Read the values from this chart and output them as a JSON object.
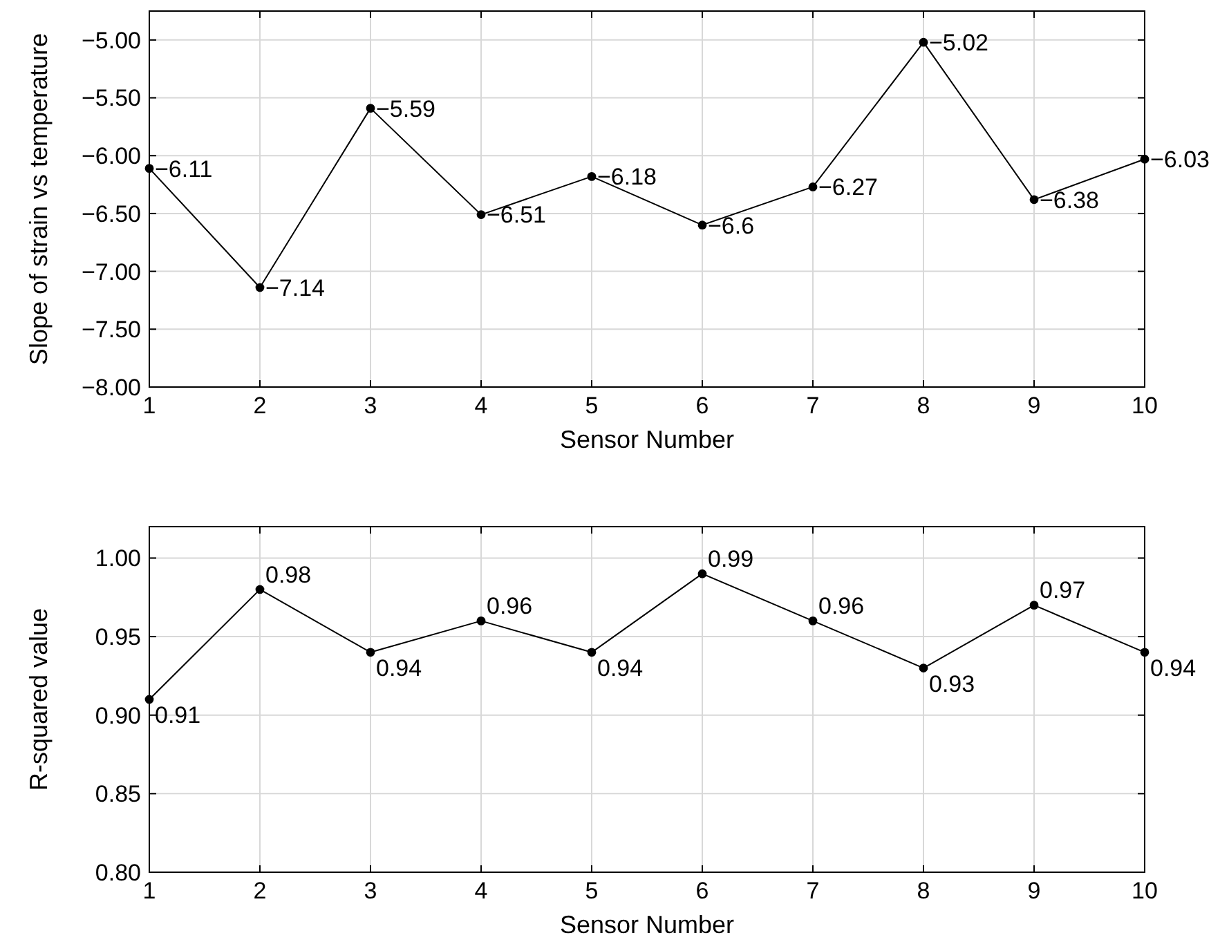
{
  "chart_data": [
    {
      "type": "line",
      "xlabel": "Sensor Number",
      "ylabel": "Slope of strain vs temperature",
      "x": [
        1,
        2,
        3,
        4,
        5,
        6,
        7,
        8,
        9,
        10
      ],
      "series": [
        {
          "color": "#000000",
          "values": [
            -6.11,
            -7.14,
            -5.59,
            -6.51,
            -6.18,
            -6.6,
            -6.27,
            -5.02,
            -6.38,
            -6.03
          ]
        }
      ],
      "xlim": [
        1,
        10
      ],
      "xticks": [
        1,
        2,
        3,
        4,
        5,
        6,
        7,
        8,
        9,
        10
      ],
      "ylim": [
        -8,
        -4.75
      ],
      "yticks": [
        {
          "value": -8,
          "label": "−8.00"
        },
        {
          "value": -7.5,
          "label": "−7.50"
        },
        {
          "value": -7,
          "label": "−7.00"
        },
        {
          "value": -6.5,
          "label": "−6.50"
        },
        {
          "value": -6,
          "label": "−6.00"
        },
        {
          "value": -5.5,
          "label": "−5.50"
        },
        {
          "value": -5,
          "label": "−5.00"
        }
      ],
      "grid": true,
      "marker": "circle",
      "line_style": "solid",
      "data_labels": true
    },
    {
      "type": "line",
      "xlabel": "Sensor Number",
      "ylabel": "R-squared value",
      "x": [
        1,
        2,
        3,
        4,
        5,
        6,
        7,
        8,
        9,
        10
      ],
      "series": [
        {
          "color": "#000000",
          "values": [
            0.91,
            0.98,
            0.94,
            0.96,
            0.94,
            0.99,
            0.96,
            0.93,
            0.97,
            0.94
          ]
        }
      ],
      "xlim": [
        1,
        10
      ],
      "xticks": [
        1,
        2,
        3,
        4,
        5,
        6,
        7,
        8,
        9,
        10
      ],
      "ylim": [
        0.8,
        1.02
      ],
      "yticks": [
        {
          "value": 0.8,
          "label": "0.80"
        },
        {
          "value": 0.85,
          "label": "0.85"
        },
        {
          "value": 0.9,
          "label": "0.90"
        },
        {
          "value": 0.95,
          "label": "0.95"
        },
        {
          "value": 1,
          "label": "1.00"
        }
      ],
      "grid": true,
      "marker": "circle",
      "line_style": "solid",
      "data_labels": true
    }
  ]
}
